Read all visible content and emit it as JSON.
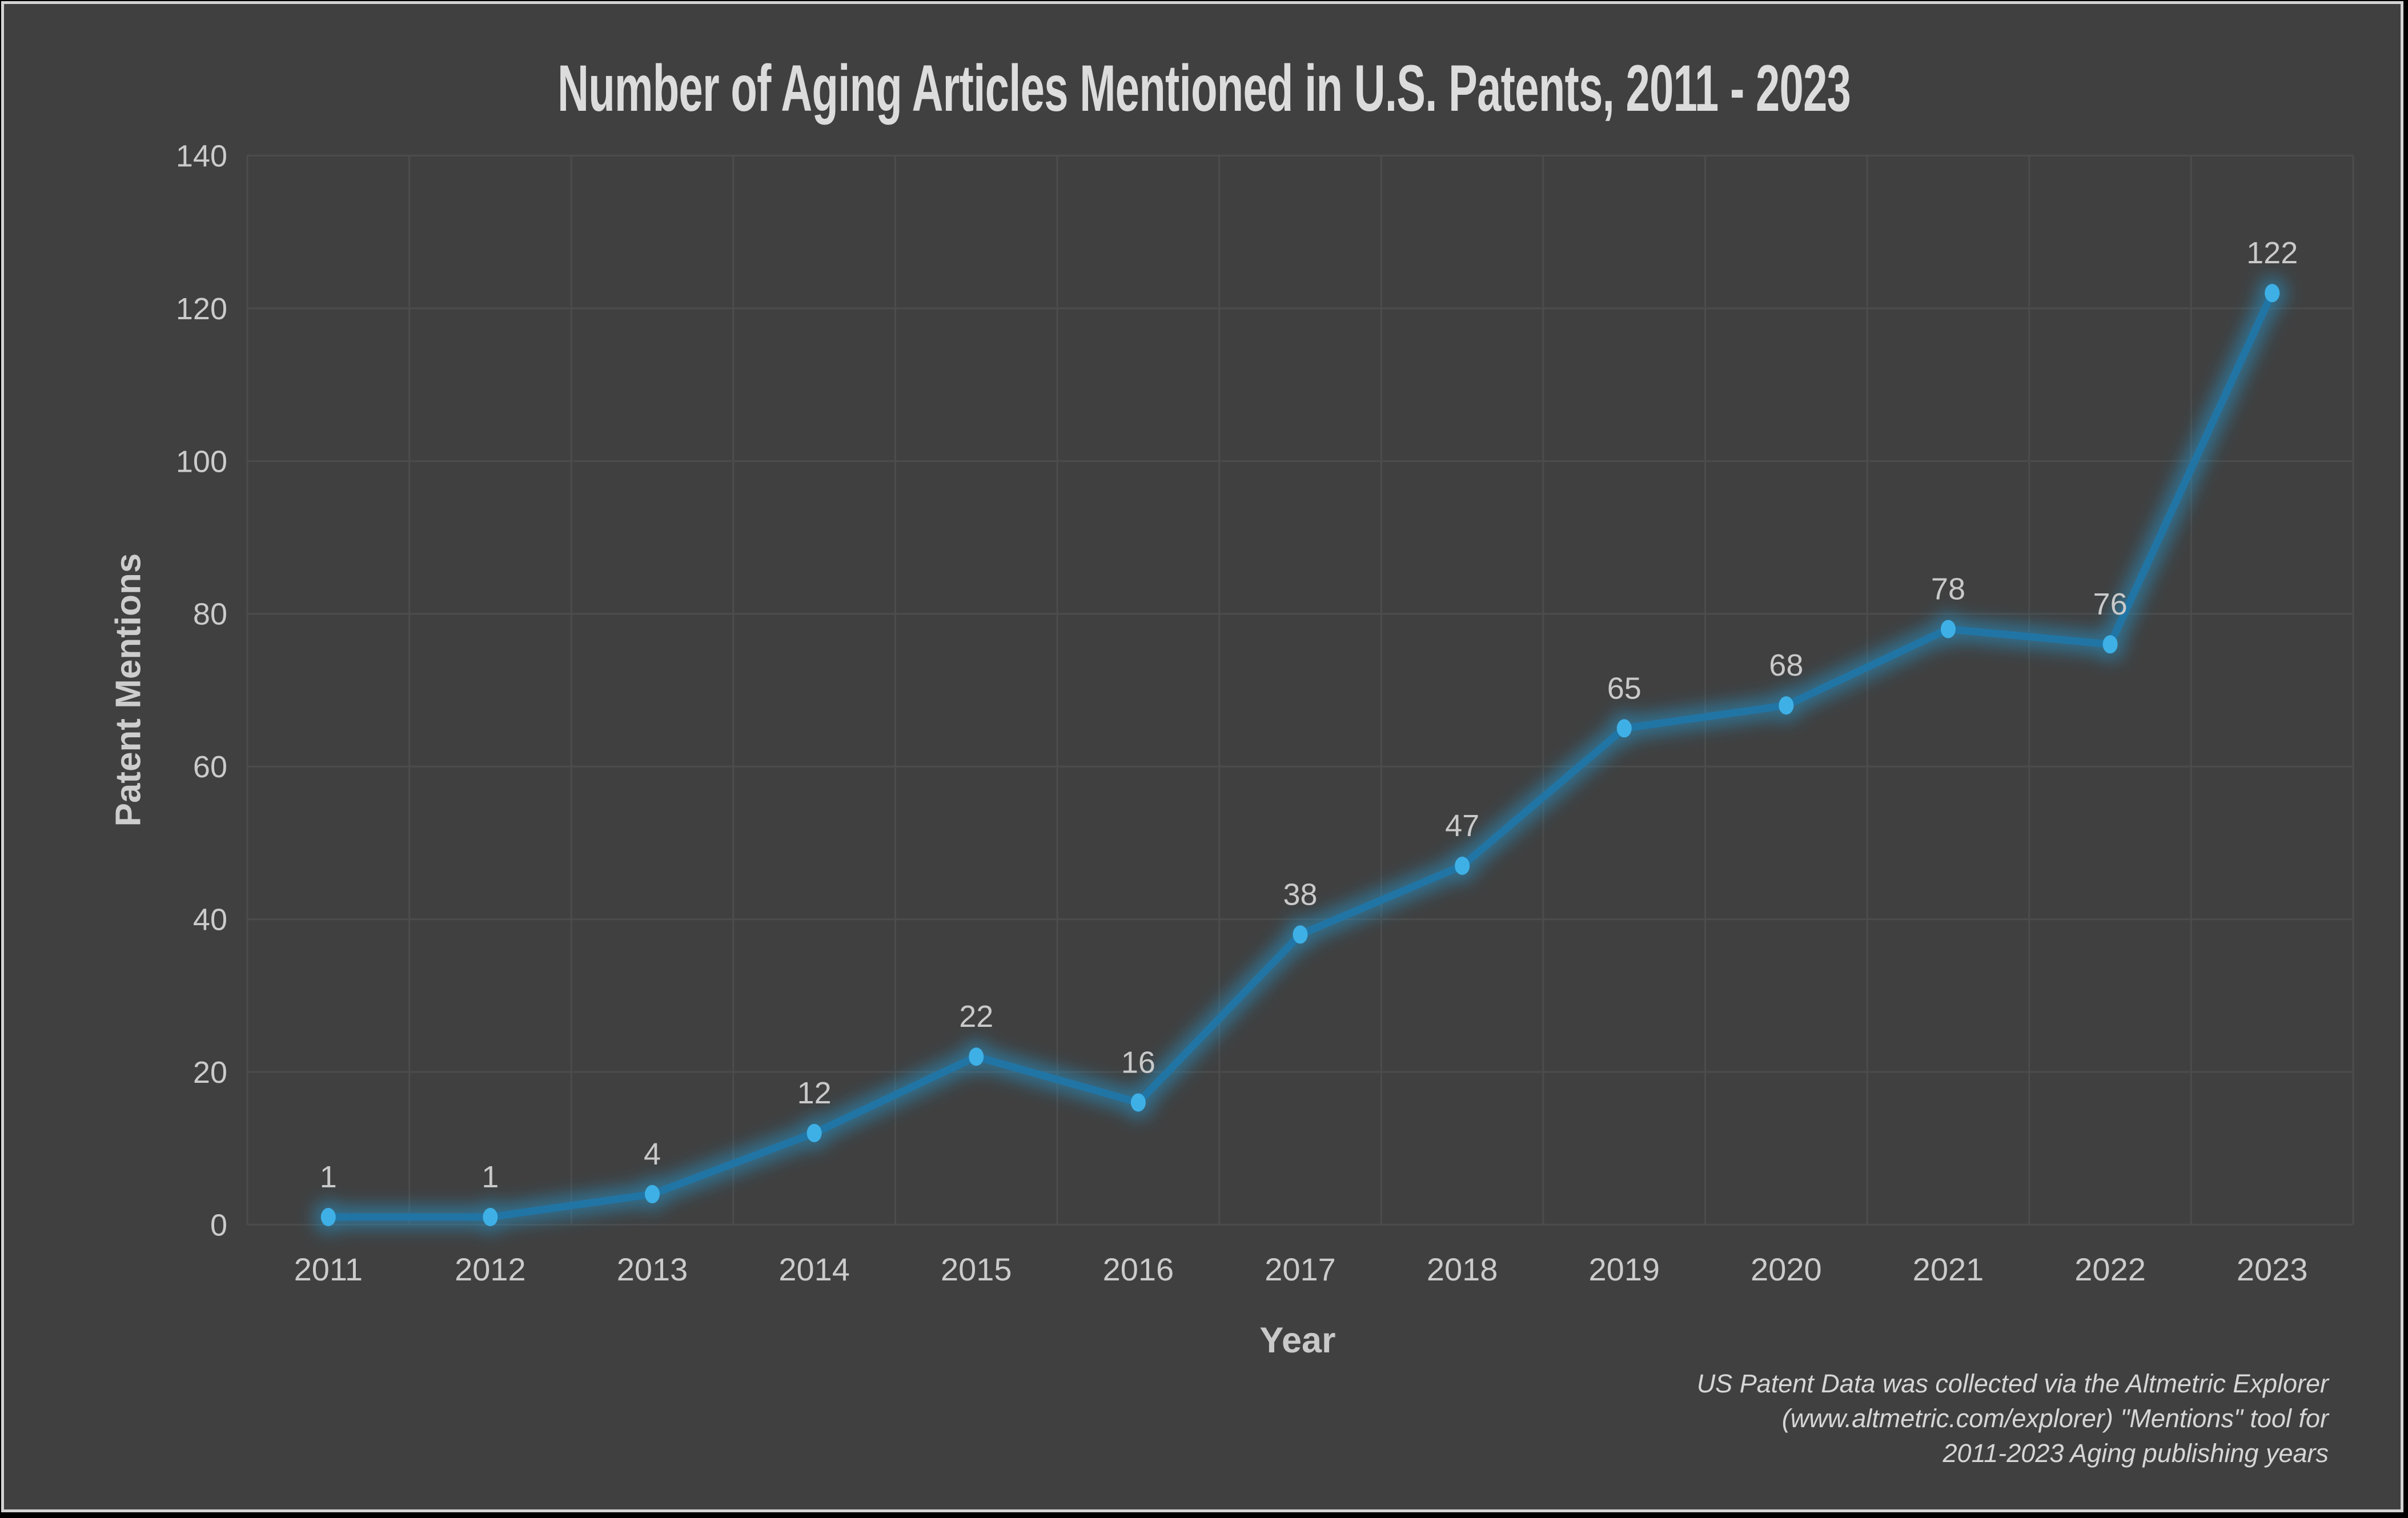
{
  "chart_data": {
    "type": "line",
    "title": "Number of Aging Articles Mentioned in U.S. Patents, 2011 - 2023",
    "xlabel": "Year",
    "ylabel": "Patent Mentions",
    "categories": [
      "2011",
      "2012",
      "2013",
      "2014",
      "2015",
      "2016",
      "2017",
      "2018",
      "2019",
      "2020",
      "2021",
      "2022",
      "2023"
    ],
    "values": [
      1,
      1,
      4,
      12,
      22,
      16,
      38,
      47,
      65,
      68,
      78,
      76,
      122
    ],
    "ylim": [
      0,
      140
    ],
    "yticks": [
      0,
      20,
      40,
      60,
      80,
      100,
      120,
      140
    ],
    "grid": "horizontal-and-vertical",
    "legend_position": "none",
    "data_labels": "above-points",
    "annotation_lines": [
      "US Patent Data was collected via the Altmetric Explorer",
      "(www.altmetric.com/explorer) \"Mentions\" tool for",
      "2011-2023 Aging publishing years"
    ],
    "colors": {
      "background": "#404040",
      "outer_border": "#D4D4D4",
      "outer_background": "#000000",
      "gridline": "#4C4C4C",
      "line": "#2175A5",
      "marker": "#3EB0E6",
      "glow": "#2596CC",
      "tick_text": "#CBCBCB",
      "label_text": "#C9C9C9",
      "title_text": "#DCDCDC",
      "annotation_text": "#D6D6D6"
    }
  }
}
